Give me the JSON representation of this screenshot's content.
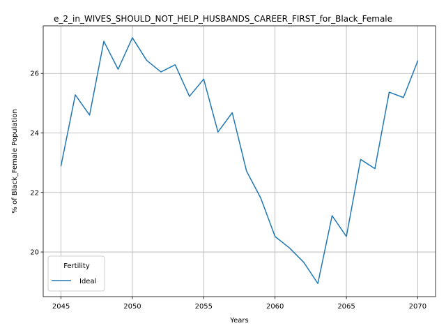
{
  "chart_data": {
    "type": "line",
    "title": "e_2_in_WIVES_SHOULD_NOT_HELP_HUSBANDS_CAREER_FIRST_for_Black_Female",
    "xlabel": "Years",
    "ylabel": "% of Black_Female Population",
    "xlim": [
      2043.75,
      2071.25
    ],
    "ylim": [
      18.5,
      27.6
    ],
    "xticks": [
      2045,
      2050,
      2055,
      2060,
      2065,
      2070
    ],
    "yticks": [
      20,
      22,
      24,
      26
    ],
    "grid": true,
    "legend": {
      "title": "Fertility",
      "placement": "lower-left"
    },
    "series": [
      {
        "name": "Ideal",
        "color": "#1f77b4",
        "x": [
          2045,
          2046,
          2047,
          2048,
          2049,
          2050,
          2051,
          2052,
          2053,
          2054,
          2055,
          2056,
          2057,
          2058,
          2059,
          2060,
          2061,
          2062,
          2063,
          2064,
          2065,
          2066,
          2067,
          2068,
          2069,
          2070
        ],
        "y": [
          22.9,
          25.28,
          24.6,
          27.08,
          26.14,
          27.2,
          26.44,
          26.05,
          26.29,
          25.23,
          25.81,
          24.03,
          24.68,
          22.72,
          21.81,
          20.52,
          20.14,
          19.66,
          18.94,
          21.22,
          20.52,
          23.11,
          22.8,
          25.37,
          25.19,
          26.42
        ]
      }
    ]
  }
}
